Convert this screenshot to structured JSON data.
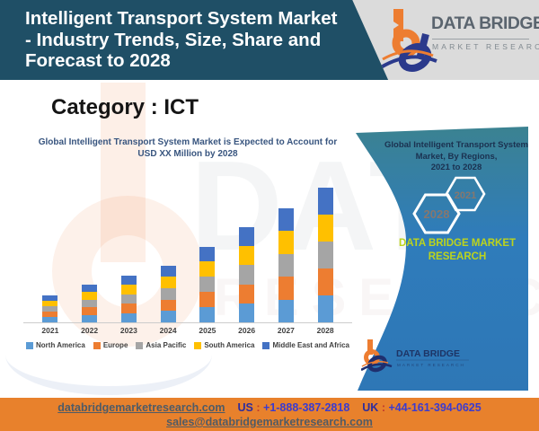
{
  "header": {
    "title_lines": [
      "Intelligent Transport System Market",
      "- Industry Trends, Size, Share and",
      "Forecast to 2028"
    ],
    "brand": {
      "name": "DATA BRIDGE",
      "tagline": "MARKET RESEARCH"
    }
  },
  "category": {
    "label": "Category : ICT"
  },
  "chart_data": {
    "type": "bar",
    "stacked": true,
    "title": "Global Intelligent Transport System Market is Expected to Account for USD XX Million by 2028",
    "title_lines": [
      "Global Intelligent Transport System Market is Expected to Account for",
      "USD XX Million by 2028"
    ],
    "categories": [
      "2021",
      "2022",
      "2023",
      "2024",
      "2025",
      "2026",
      "2027",
      "2028"
    ],
    "series": [
      {
        "name": "North America",
        "color": "#5B9BD5",
        "values": [
          6.0,
          8.2,
          10.2,
          12.4,
          16.6,
          20.8,
          25.0,
          29.4
        ]
      },
      {
        "name": "Europe",
        "color": "#ED7D31",
        "values": [
          6.0,
          8.2,
          10.2,
          12.4,
          16.6,
          20.8,
          25.0,
          29.4
        ]
      },
      {
        "name": "Asia Pacific",
        "color": "#A5A5A5",
        "values": [
          6.0,
          8.2,
          10.2,
          12.4,
          16.6,
          20.8,
          25.0,
          29.4
        ]
      },
      {
        "name": "South America",
        "color": "#FFC000",
        "values": [
          6.0,
          8.2,
          10.2,
          12.4,
          16.6,
          20.8,
          25.0,
          29.4
        ]
      },
      {
        "name": "Middle East and Africa",
        "color": "#4472C4",
        "values": [
          6.0,
          8.2,
          10.2,
          12.4,
          16.6,
          20.8,
          25.0,
          29.4
        ]
      }
    ],
    "totals": [
      30,
      41,
      51,
      62,
      83,
      104,
      125,
      147
    ],
    "xlabel": "",
    "ylabel": "",
    "value_units": "relative index (actual values shown as USD XX Million)",
    "legend_position": "bottom",
    "grid": false
  },
  "side_panel": {
    "title_lines": [
      "Global Intelligent Transport System",
      "Market,  By Regions,",
      "2021 to 2028"
    ],
    "hexagons": [
      "2028",
      "2021"
    ],
    "brand_lines": [
      "DATA BRIDGE MARKET",
      "RESEARCH"
    ],
    "logo": {
      "name": "DATA BRIDGE",
      "tagline": "MARKET RESEARCH"
    },
    "colors": {
      "top": "#3b8291",
      "bottom": "#2e78b8",
      "brand_text": "#bdd41c"
    }
  },
  "footer": {
    "website": "databridgemarketresearch.com",
    "us_label": "US",
    "us_phone": "+1-888-387-2818",
    "uk_label": "UK",
    "uk_phone": "+44-161-394-0625",
    "separator": ":",
    "email": "sales@databridgemarketresearch.com",
    "bg_color": "#e8812c"
  },
  "watermarks": {
    "text_top": "DATA BRI",
    "text_bottom": "RESEARCH"
  }
}
